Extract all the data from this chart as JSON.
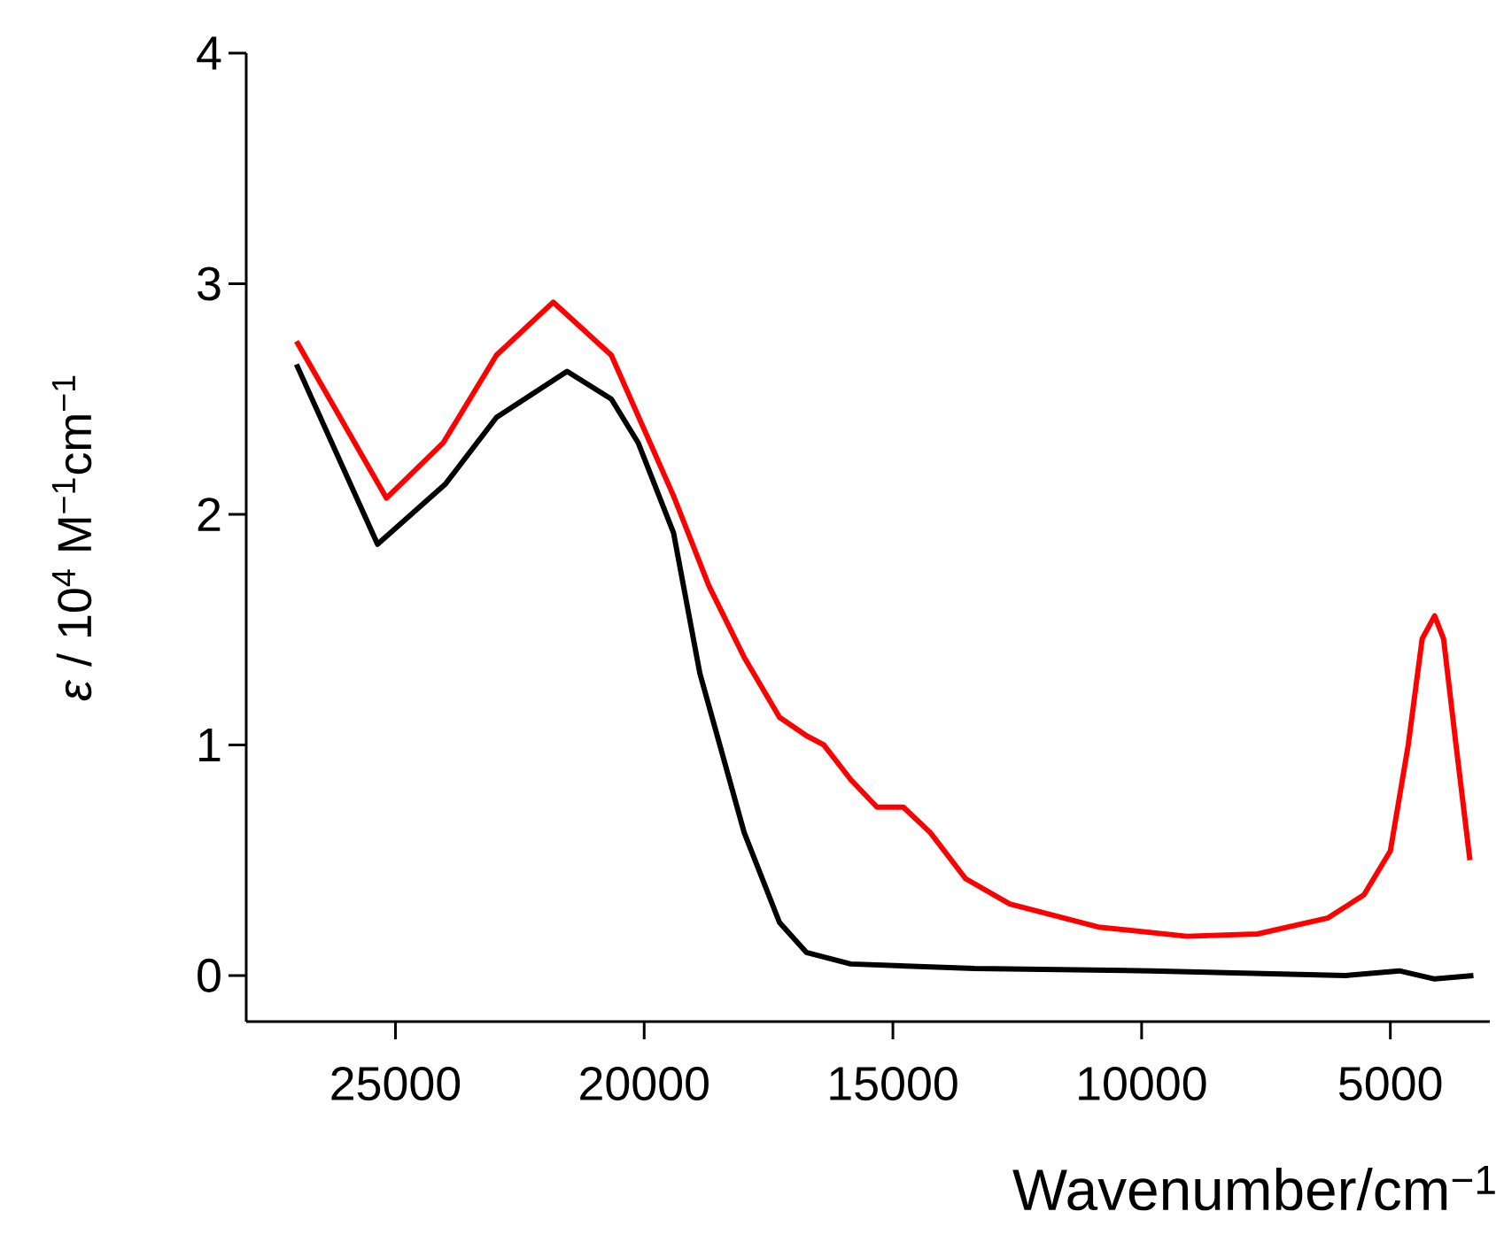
{
  "chart_data": {
    "type": "line",
    "xlabel": "Wavenumber/cm$^{−1}$",
    "ylabel": "*ε* / 10$^{4}$ M$^{−1}$cm$^{−1}$",
    "xlim": [
      28000,
      3000
    ],
    "ylim": [
      -0.2,
      4
    ],
    "xticks": [
      25000,
      20000,
      15000,
      10000,
      5000
    ],
    "yticks": [
      0,
      1,
      2,
      3,
      4
    ],
    "line_style": "solid",
    "marker": "none",
    "series": [
      {
        "color": "#000000",
        "x": [
          26990,
          25360,
          24000,
          22970,
          21550,
          20660,
          20120,
          19410,
          18880,
          17990,
          17280,
          16740,
          15850,
          13360,
          9800,
          5890,
          4820,
          4110,
          3330
        ],
        "values": [
          2.65,
          1.87,
          2.13,
          2.42,
          2.62,
          2.5,
          2.31,
          1.92,
          1.31,
          0.62,
          0.23,
          0.1,
          0.05,
          0.03,
          0.02,
          0.0,
          0.02,
          -0.015,
          0.0
        ]
      },
      {
        "color": "#ff0000",
        "x": [
          26990,
          25180,
          24040,
          22970,
          21830,
          20660,
          19410,
          18700,
          17990,
          17280,
          16740,
          16390,
          15850,
          15320,
          14790,
          14250,
          13540,
          12650,
          10870,
          9090,
          7670,
          6250,
          5530,
          5000,
          4640,
          4360,
          4110,
          3930,
          3680,
          3400
        ],
        "values": [
          2.75,
          2.07,
          2.31,
          2.69,
          2.92,
          2.69,
          2.08,
          1.69,
          1.38,
          1.12,
          1.04,
          1.0,
          0.85,
          0.73,
          0.73,
          0.62,
          0.42,
          0.31,
          0.21,
          0.17,
          0.18,
          0.25,
          0.35,
          0.54,
          1.0,
          1.46,
          1.56,
          1.46,
          1.0,
          0.5
        ]
      }
    ]
  }
}
